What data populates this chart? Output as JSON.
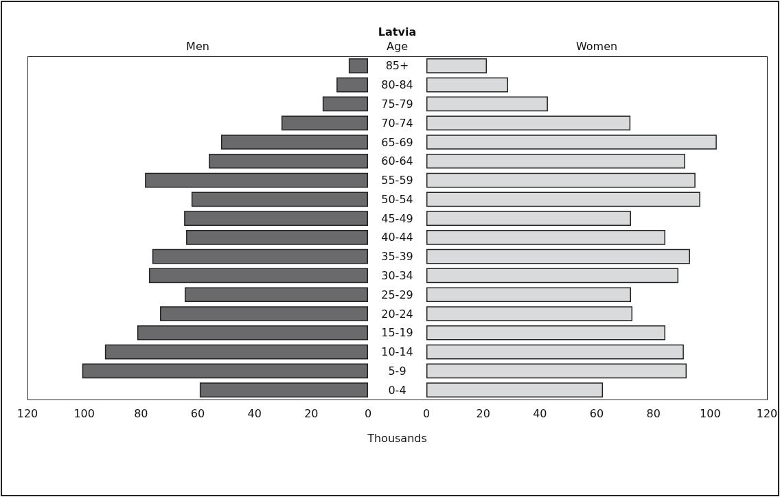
{
  "chart_data": [
    {
      "type": "bar",
      "orientation": "horizontal",
      "title": "Latvia",
      "subtitle": "Men",
      "ylabel": "Age",
      "xlabel": "Thousands",
      "categories": [
        "85+",
        "80-84",
        "75-79",
        "70-74",
        "65-69",
        "60-64",
        "55-59",
        "50-54",
        "45-49",
        "40-44",
        "35-39",
        "30-34",
        "25-29",
        "20-24",
        "15-19",
        "10-14",
        "5-9",
        "0-4"
      ],
      "series": [
        {
          "color": "#6a6a6c",
          "values": [
            6.8,
            11.1,
            16.0,
            30.5,
            51.8,
            56.1,
            78.6,
            62.2,
            64.8,
            64.1,
            76.0,
            77.2,
            64.6,
            73.3,
            81.3,
            92.7,
            100.7,
            59.3
          ]
        }
      ],
      "xlim": [
        120,
        0
      ],
      "xticks": [
        120,
        100,
        80,
        60,
        40,
        20,
        0
      ]
    },
    {
      "type": "bar",
      "orientation": "horizontal",
      "subtitle": "Women",
      "categories": [
        null,
        null,
        null,
        null,
        null,
        null,
        null,
        null,
        null,
        null,
        null,
        null,
        null,
        null,
        null,
        null,
        null,
        null
      ],
      "series": [
        {
          "color": "#d9dadc",
          "values": [
            21.3,
            28.8,
            42.8,
            71.9,
            102.3,
            91.2,
            94.8,
            96.5,
            72.1,
            84.2,
            92.9,
            88.8,
            72.1,
            72.6,
            84.2,
            90.7,
            91.7,
            62.2
          ]
        }
      ],
      "xlim": [
        0,
        120
      ],
      "xticks": [
        0,
        20,
        40,
        60,
        80,
        100,
        120
      ],
      "tick_labels": "x"
    }
  ]
}
